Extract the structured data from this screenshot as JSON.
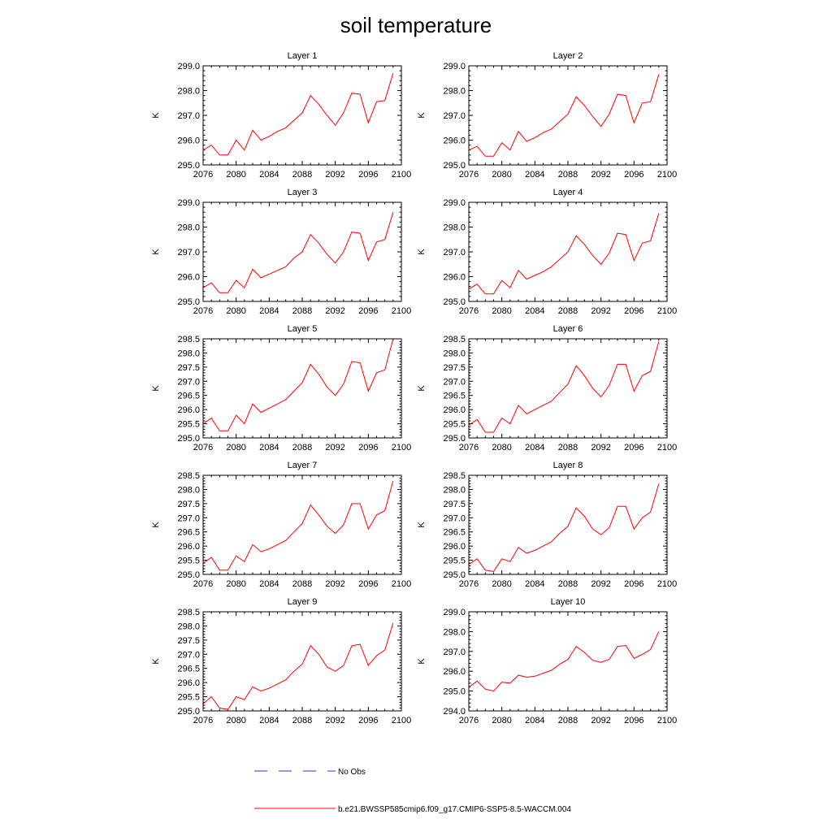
{
  "title": "soil temperature",
  "colors": {
    "model": "#ff0000",
    "obs": "#3030c0",
    "axis": "#000000"
  },
  "legend": {
    "obs_label": "No Obs",
    "model_label": "b.e21.BWSSP585cmip6.f09_g17.CMIP6-SSP5-8.5-WACCM.004"
  },
  "chart_data": [
    {
      "type": "line",
      "title": "Layer 1",
      "xlabel": "",
      "ylabel": "K",
      "xlim": [
        2076,
        2100
      ],
      "ylim": [
        295,
        299
      ],
      "xticks": [
        "2076",
        "2080",
        "2084",
        "2088",
        "2092",
        "2096",
        "2100"
      ],
      "yticks": [
        "295.0",
        "296.0",
        "297.0",
        "298.0",
        "299.0"
      ],
      "x": [
        2076,
        2077,
        2078,
        2079,
        2080,
        2081,
        2082,
        2083,
        2084,
        2085,
        2086,
        2087,
        2088,
        2089,
        2090,
        2091,
        2092,
        2093,
        2094,
        2095,
        2096,
        2097,
        2098,
        2099
      ],
      "series": [
        {
          "name": "b.e21.BWSSP585cmip6.f09_g17.CMIP6-SSP5-8.5-WACCM.004",
          "values": [
            295.6,
            295.8,
            295.4,
            295.4,
            296.0,
            295.6,
            296.4,
            296.0,
            296.15,
            296.35,
            296.5,
            296.8,
            297.1,
            297.8,
            297.45,
            297.0,
            296.6,
            297.1,
            297.9,
            297.85,
            296.7,
            297.55,
            297.6,
            298.7
          ]
        }
      ]
    },
    {
      "type": "line",
      "title": "Layer 2",
      "xlabel": "",
      "ylabel": "K",
      "xlim": [
        2076,
        2100
      ],
      "ylim": [
        295,
        299
      ],
      "xticks": [
        "2076",
        "2080",
        "2084",
        "2088",
        "2092",
        "2096",
        "2100"
      ],
      "yticks": [
        "295.0",
        "296.0",
        "297.0",
        "298.0",
        "299.0"
      ],
      "x": [
        2076,
        2077,
        2078,
        2079,
        2080,
        2081,
        2082,
        2083,
        2084,
        2085,
        2086,
        2087,
        2088,
        2089,
        2090,
        2091,
        2092,
        2093,
        2094,
        2095,
        2096,
        2097,
        2098,
        2099
      ],
      "series": [
        {
          "name": "b.e21.BWSSP585cmip6.f09_g17.CMIP6-SSP5-8.5-WACCM.004",
          "values": [
            295.6,
            295.75,
            295.35,
            295.35,
            295.9,
            295.6,
            296.35,
            295.95,
            296.1,
            296.3,
            296.45,
            296.75,
            297.05,
            297.75,
            297.4,
            296.95,
            296.55,
            297.05,
            297.85,
            297.8,
            296.7,
            297.5,
            297.55,
            298.65
          ]
        }
      ]
    },
    {
      "type": "line",
      "title": "Layer 3",
      "xlabel": "",
      "ylabel": "K",
      "xlim": [
        2076,
        2100
      ],
      "ylim": [
        295,
        299
      ],
      "xticks": [
        "2076",
        "2080",
        "2084",
        "2088",
        "2092",
        "2096",
        "2100"
      ],
      "yticks": [
        "295.0",
        "296.0",
        "297.0",
        "298.0",
        "299.0"
      ],
      "x": [
        2076,
        2077,
        2078,
        2079,
        2080,
        2081,
        2082,
        2083,
        2084,
        2085,
        2086,
        2087,
        2088,
        2089,
        2090,
        2091,
        2092,
        2093,
        2094,
        2095,
        2096,
        2097,
        2098,
        2099
      ],
      "series": [
        {
          "name": "b.e21.BWSSP585cmip6.f09_g17.CMIP6-SSP5-8.5-WACCM.004",
          "values": [
            295.55,
            295.75,
            295.35,
            295.35,
            295.85,
            295.55,
            296.3,
            295.95,
            296.1,
            296.25,
            296.4,
            296.75,
            297.0,
            297.7,
            297.35,
            296.9,
            296.55,
            297.0,
            297.8,
            297.75,
            296.65,
            297.4,
            297.5,
            298.6
          ]
        }
      ]
    },
    {
      "type": "line",
      "title": "Layer 4",
      "xlabel": "",
      "ylabel": "K",
      "xlim": [
        2076,
        2100
      ],
      "ylim": [
        295,
        299
      ],
      "xticks": [
        "2076",
        "2080",
        "2084",
        "2088",
        "2092",
        "2096",
        "2100"
      ],
      "yticks": [
        "295.0",
        "296.0",
        "297.0",
        "298.0",
        "299.0"
      ],
      "x": [
        2076,
        2077,
        2078,
        2079,
        2080,
        2081,
        2082,
        2083,
        2084,
        2085,
        2086,
        2087,
        2088,
        2089,
        2090,
        2091,
        2092,
        2093,
        2094,
        2095,
        2096,
        2097,
        2098,
        2099
      ],
      "series": [
        {
          "name": "b.e21.BWSSP585cmip6.f09_g17.CMIP6-SSP5-8.5-WACCM.004",
          "values": [
            295.5,
            295.7,
            295.3,
            295.3,
            295.85,
            295.55,
            296.25,
            295.9,
            296.05,
            296.2,
            296.4,
            296.7,
            297.0,
            297.65,
            297.3,
            296.85,
            296.5,
            296.95,
            297.75,
            297.7,
            296.65,
            297.35,
            297.45,
            298.55
          ]
        }
      ]
    },
    {
      "type": "line",
      "title": "Layer 5",
      "xlabel": "",
      "ylabel": "K",
      "xlim": [
        2076,
        2100
      ],
      "ylim": [
        295,
        298.5
      ],
      "xticks": [
        "2076",
        "2080",
        "2084",
        "2088",
        "2092",
        "2096",
        "2100"
      ],
      "yticks": [
        "295.0",
        "295.5",
        "296.0",
        "296.5",
        "297.0",
        "297.5",
        "298.0",
        "298.5"
      ],
      "x": [
        2076,
        2077,
        2078,
        2079,
        2080,
        2081,
        2082,
        2083,
        2084,
        2085,
        2086,
        2087,
        2088,
        2089,
        2090,
        2091,
        2092,
        2093,
        2094,
        2095,
        2096,
        2097,
        2098,
        2099
      ],
      "series": [
        {
          "name": "b.e21.BWSSP585cmip6.f09_g17.CMIP6-SSP5-8.5-WACCM.004",
          "values": [
            295.5,
            295.7,
            295.25,
            295.25,
            295.8,
            295.5,
            296.2,
            295.9,
            296.05,
            296.2,
            296.35,
            296.65,
            296.95,
            297.6,
            297.25,
            296.8,
            296.5,
            296.9,
            297.7,
            297.65,
            296.65,
            297.3,
            297.4,
            298.5
          ]
        }
      ]
    },
    {
      "type": "line",
      "title": "Layer 6",
      "xlabel": "",
      "ylabel": "K",
      "xlim": [
        2076,
        2100
      ],
      "ylim": [
        295,
        298.5
      ],
      "xticks": [
        "2076",
        "2080",
        "2084",
        "2088",
        "2092",
        "2096",
        "2100"
      ],
      "yticks": [
        "295.0",
        "295.5",
        "296.0",
        "296.5",
        "297.0",
        "297.5",
        "298.0",
        "298.5"
      ],
      "x": [
        2076,
        2077,
        2078,
        2079,
        2080,
        2081,
        2082,
        2083,
        2084,
        2085,
        2086,
        2087,
        2088,
        2089,
        2090,
        2091,
        2092,
        2093,
        2094,
        2095,
        2096,
        2097,
        2098,
        2099
      ],
      "series": [
        {
          "name": "b.e21.BWSSP585cmip6.f09_g17.CMIP6-SSP5-8.5-WACCM.004",
          "values": [
            295.45,
            295.65,
            295.2,
            295.2,
            295.7,
            295.5,
            296.15,
            295.85,
            296.0,
            296.15,
            296.3,
            296.6,
            296.9,
            297.55,
            297.2,
            296.75,
            296.45,
            296.85,
            297.6,
            297.6,
            296.65,
            297.2,
            297.35,
            298.4
          ]
        }
      ]
    },
    {
      "type": "line",
      "title": "Layer 7",
      "xlabel": "",
      "ylabel": "K",
      "xlim": [
        2076,
        2100
      ],
      "ylim": [
        295,
        298.5
      ],
      "xticks": [
        "2076",
        "2080",
        "2084",
        "2088",
        "2092",
        "2096",
        "2100"
      ],
      "yticks": [
        "295.0",
        "295.5",
        "296.0",
        "296.5",
        "297.0",
        "297.5",
        "298.0",
        "298.5"
      ],
      "x": [
        2076,
        2077,
        2078,
        2079,
        2080,
        2081,
        2082,
        2083,
        2084,
        2085,
        2086,
        2087,
        2088,
        2089,
        2090,
        2091,
        2092,
        2093,
        2094,
        2095,
        2096,
        2097,
        2098,
        2099
      ],
      "series": [
        {
          "name": "b.e21.BWSSP585cmip6.f09_g17.CMIP6-SSP5-8.5-WACCM.004",
          "values": [
            295.4,
            295.6,
            295.15,
            295.15,
            295.65,
            295.45,
            296.05,
            295.8,
            295.9,
            296.05,
            296.2,
            296.5,
            296.8,
            297.45,
            297.1,
            296.7,
            296.45,
            296.75,
            297.5,
            297.5,
            296.6,
            297.1,
            297.25,
            298.3
          ]
        }
      ]
    },
    {
      "type": "line",
      "title": "Layer 8",
      "xlabel": "",
      "ylabel": "K",
      "xlim": [
        2076,
        2100
      ],
      "ylim": [
        295,
        298.5
      ],
      "xticks": [
        "2076",
        "2080",
        "2084",
        "2088",
        "2092",
        "2096",
        "2100"
      ],
      "yticks": [
        "295.0",
        "295.5",
        "296.0",
        "296.5",
        "297.0",
        "297.5",
        "298.0",
        "298.5"
      ],
      "x": [
        2076,
        2077,
        2078,
        2079,
        2080,
        2081,
        2082,
        2083,
        2084,
        2085,
        2086,
        2087,
        2088,
        2089,
        2090,
        2091,
        2092,
        2093,
        2094,
        2095,
        2096,
        2097,
        2098,
        2099
      ],
      "series": [
        {
          "name": "b.e21.BWSSP585cmip6.f09_g17.CMIP6-SSP5-8.5-WACCM.004",
          "values": [
            295.35,
            295.55,
            295.15,
            295.1,
            295.55,
            295.45,
            295.95,
            295.75,
            295.85,
            296.0,
            296.15,
            296.45,
            296.7,
            297.35,
            297.05,
            296.6,
            296.4,
            296.65,
            297.4,
            297.4,
            296.6,
            297.0,
            297.2,
            298.2
          ]
        }
      ]
    },
    {
      "type": "line",
      "title": "Layer 9",
      "xlabel": "",
      "ylabel": "K",
      "xlim": [
        2076,
        2100
      ],
      "ylim": [
        295,
        298.5
      ],
      "xticks": [
        "2076",
        "2080",
        "2084",
        "2088",
        "2092",
        "2096",
        "2100"
      ],
      "yticks": [
        "295.0",
        "295.5",
        "296.0",
        "296.5",
        "297.0",
        "297.5",
        "298.0",
        "298.5"
      ],
      "x": [
        2076,
        2077,
        2078,
        2079,
        2080,
        2081,
        2082,
        2083,
        2084,
        2085,
        2086,
        2087,
        2088,
        2089,
        2090,
        2091,
        2092,
        2093,
        2094,
        2095,
        2096,
        2097,
        2098,
        2099
      ],
      "series": [
        {
          "name": "b.e21.BWSSP585cmip6.f09_g17.CMIP6-SSP5-8.5-WACCM.004",
          "values": [
            295.25,
            295.5,
            295.1,
            295.05,
            295.5,
            295.4,
            295.85,
            295.7,
            295.8,
            295.95,
            296.1,
            296.4,
            296.65,
            297.3,
            297.0,
            296.55,
            296.4,
            296.6,
            297.3,
            297.35,
            296.6,
            296.95,
            297.15,
            298.1
          ]
        }
      ]
    },
    {
      "type": "line",
      "title": "Layer 10",
      "xlabel": "",
      "ylabel": "K",
      "xlim": [
        2076,
        2100
      ],
      "ylim": [
        294,
        299
      ],
      "xticks": [
        "2076",
        "2080",
        "2084",
        "2088",
        "2092",
        "2096",
        "2100"
      ],
      "yticks": [
        "294.0",
        "295.0",
        "296.0",
        "297.0",
        "298.0",
        "299.0"
      ],
      "x": [
        2076,
        2077,
        2078,
        2079,
        2080,
        2081,
        2082,
        2083,
        2084,
        2085,
        2086,
        2087,
        2088,
        2089,
        2090,
        2091,
        2092,
        2093,
        2094,
        2095,
        2096,
        2097,
        2098,
        2099
      ],
      "series": [
        {
          "name": "b.e21.BWSSP585cmip6.f09_g17.CMIP6-SSP5-8.5-WACCM.004",
          "values": [
            295.2,
            295.5,
            295.1,
            295.0,
            295.45,
            295.4,
            295.8,
            295.7,
            295.75,
            295.9,
            296.05,
            296.35,
            296.6,
            297.25,
            296.95,
            296.55,
            296.45,
            296.6,
            297.25,
            297.3,
            296.65,
            296.85,
            297.1,
            298.0
          ]
        }
      ]
    }
  ]
}
